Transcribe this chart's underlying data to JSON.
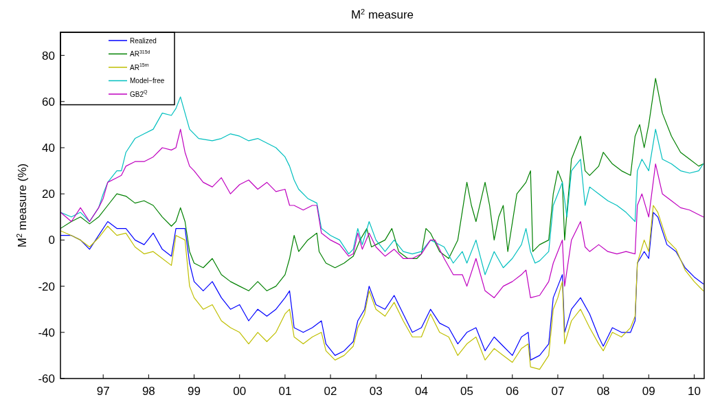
{
  "chart_data": {
    "type": "line",
    "title": "M$^{2}$ measure",
    "ylabel": "M$^{2}$ measure (%)",
    "xlim": [
      1996.06,
      2010.22
    ],
    "ylim": [
      -60,
      90
    ],
    "xticks": [
      {
        "value": 1997,
        "label": "97"
      },
      {
        "value": 1998,
        "label": "98"
      },
      {
        "value": 1999,
        "label": "99"
      },
      {
        "value": 2000,
        "label": "00"
      },
      {
        "value": 2001,
        "label": "01"
      },
      {
        "value": 2002,
        "label": "02"
      },
      {
        "value": 2003,
        "label": "03"
      },
      {
        "value": 2004,
        "label": "04"
      },
      {
        "value": 2005,
        "label": "05"
      },
      {
        "value": 2006,
        "label": "06"
      },
      {
        "value": 2007,
        "label": "07"
      },
      {
        "value": 2008,
        "label": "08"
      },
      {
        "value": 2009,
        "label": "09"
      },
      {
        "value": 2010,
        "label": "10"
      }
    ],
    "yticks": [
      -60,
      -40,
      -20,
      0,
      20,
      40,
      60,
      80
    ],
    "legend": "top left",
    "series": [
      {
        "name": "Realized",
        "color": "#0000ff",
        "x": [
          1996.06,
          1996.3,
          1996.5,
          1996.7,
          1996.9,
          1997.1,
          1997.3,
          1997.5,
          1997.7,
          1997.9,
          1998.1,
          1998.3,
          1998.5,
          1998.6,
          1998.8,
          1998.9,
          1999.0,
          1999.2,
          1999.4,
          1999.6,
          1999.8,
          2000.0,
          2000.2,
          2000.4,
          2000.6,
          2000.8,
          2001.0,
          2001.1,
          2001.2,
          2001.4,
          2001.6,
          2001.8,
          2001.9,
          2002.1,
          2002.3,
          2002.5,
          2002.6,
          2002.75,
          2002.85,
          2003.0,
          2003.2,
          2003.4,
          2003.6,
          2003.8,
          2004.0,
          2004.2,
          2004.4,
          2004.6,
          2004.8,
          2005.0,
          2005.2,
          2005.4,
          2005.6,
          2005.8,
          2006.0,
          2006.2,
          2006.35,
          2006.4,
          2006.6,
          2006.8,
          2006.9,
          2007.0,
          2007.1,
          2007.15,
          2007.3,
          2007.5,
          2007.7,
          2007.9,
          2008.0,
          2008.2,
          2008.4,
          2008.6,
          2008.7,
          2008.75,
          2008.9,
          2009.0,
          2009.1,
          2009.2,
          2009.4,
          2009.6,
          2009.8,
          2010.0,
          2010.2
        ],
        "values": [
          2,
          2,
          0,
          -4,
          2,
          8,
          5,
          5,
          0,
          -2,
          3,
          -4,
          -7,
          5,
          5,
          -10,
          -18,
          -22,
          -18,
          -25,
          -30,
          -28,
          -35,
          -30,
          -33,
          -30,
          -25,
          -22,
          -38,
          -40,
          -38,
          -35,
          -45,
          -50,
          -48,
          -44,
          -35,
          -30,
          -20,
          -28,
          -30,
          -24,
          -32,
          -40,
          -38,
          -30,
          -36,
          -38,
          -45,
          -40,
          -38,
          -48,
          -42,
          -46,
          -50,
          -42,
          -40,
          -52,
          -50,
          -45,
          -25,
          -20,
          -15,
          -40,
          -30,
          -25,
          -32,
          -42,
          -46,
          -38,
          -40,
          -40,
          -35,
          -10,
          -5,
          -8,
          12,
          10,
          -2,
          -5,
          -12,
          -16,
          -19
        ]
      },
      {
        "name": "AR$^{315d}$",
        "color": "#008000",
        "x": [
          1996.06,
          1996.3,
          1996.5,
          1996.7,
          1996.9,
          1997.1,
          1997.3,
          1997.5,
          1997.7,
          1997.9,
          1998.1,
          1998.3,
          1998.5,
          1998.6,
          1998.7,
          1998.8,
          1998.9,
          1999.0,
          1999.2,
          1999.4,
          1999.6,
          1999.8,
          2000.0,
          2000.2,
          2000.4,
          2000.6,
          2000.8,
          2001.0,
          2001.1,
          2001.2,
          2001.3,
          2001.5,
          2001.7,
          2001.75,
          2001.9,
          2002.1,
          2002.3,
          2002.5,
          2002.65,
          2002.8,
          2002.9,
          2003.0,
          2003.2,
          2003.35,
          2003.5,
          2003.7,
          2003.9,
          2004.0,
          2004.1,
          2004.2,
          2004.4,
          2004.6,
          2004.8,
          2005.0,
          2005.1,
          2005.2,
          2005.4,
          2005.5,
          2005.6,
          2005.7,
          2005.8,
          2005.9,
          2006.1,
          2006.3,
          2006.4,
          2006.45,
          2006.6,
          2006.8,
          2006.9,
          2007.0,
          2007.1,
          2007.15,
          2007.3,
          2007.4,
          2007.5,
          2007.6,
          2007.7,
          2007.9,
          2008.0,
          2008.2,
          2008.4,
          2008.6,
          2008.7,
          2008.8,
          2008.9,
          2009.0,
          2009.15,
          2009.3,
          2009.5,
          2009.7,
          2009.9,
          2010.1,
          2010.2
        ],
        "values": [
          5,
          8,
          10,
          7,
          10,
          15,
          20,
          19,
          16,
          17,
          15,
          10,
          6,
          8,
          14,
          8,
          -5,
          -10,
          -12,
          -8,
          -15,
          -18,
          -20,
          -22,
          -18,
          -22,
          -20,
          -15,
          -8,
          2,
          -5,
          0,
          3,
          -5,
          -10,
          -12,
          -10,
          -7,
          0,
          5,
          -3,
          -2,
          0,
          5,
          -5,
          -8,
          -8,
          -6,
          5,
          3,
          -5,
          -8,
          0,
          25,
          15,
          8,
          25,
          15,
          0,
          10,
          15,
          -5,
          20,
          25,
          30,
          -5,
          -2,
          0,
          20,
          30,
          25,
          0,
          35,
          40,
          45,
          30,
          28,
          32,
          38,
          33,
          30,
          28,
          45,
          50,
          40,
          50,
          70,
          55,
          45,
          38,
          35,
          32,
          33
        ]
      },
      {
        "name": "AR$^{15m}$",
        "color": "#bfbf00",
        "x": [
          1996.06,
          1996.3,
          1996.5,
          1996.7,
          1996.9,
          1997.1,
          1997.3,
          1997.5,
          1997.7,
          1997.9,
          1998.1,
          1998.3,
          1998.5,
          1998.6,
          1998.8,
          1998.9,
          1999.0,
          1999.2,
          1999.4,
          1999.6,
          1999.8,
          2000.0,
          2000.2,
          2000.4,
          2000.6,
          2000.8,
          2001.0,
          2001.1,
          2001.2,
          2001.4,
          2001.6,
          2001.8,
          2001.9,
          2002.1,
          2002.3,
          2002.5,
          2002.6,
          2002.75,
          2002.85,
          2003.0,
          2003.2,
          2003.4,
          2003.6,
          2003.8,
          2004.0,
          2004.2,
          2004.4,
          2004.6,
          2004.8,
          2005.0,
          2005.2,
          2005.4,
          2005.6,
          2005.8,
          2006.0,
          2006.2,
          2006.35,
          2006.4,
          2006.6,
          2006.8,
          2006.9,
          2007.0,
          2007.1,
          2007.15,
          2007.3,
          2007.5,
          2007.7,
          2007.9,
          2008.0,
          2008.2,
          2008.4,
          2008.6,
          2008.7,
          2008.75,
          2008.9,
          2009.0,
          2009.1,
          2009.2,
          2009.4,
          2009.6,
          2009.8,
          2010.0,
          2010.2
        ],
        "values": [
          4,
          2,
          0,
          -3,
          1,
          6,
          2,
          3,
          -3,
          -6,
          -5,
          -8,
          -11,
          2,
          0,
          -20,
          -25,
          -30,
          -28,
          -35,
          -38,
          -40,
          -45,
          -40,
          -44,
          -40,
          -32,
          -30,
          -42,
          -45,
          -42,
          -40,
          -48,
          -52,
          -50,
          -46,
          -38,
          -32,
          -22,
          -30,
          -33,
          -27,
          -35,
          -42,
          -42,
          -32,
          -40,
          -42,
          -50,
          -45,
          -42,
          -52,
          -47,
          -50,
          -53,
          -47,
          -45,
          -55,
          -56,
          -50,
          -30,
          -25,
          -18,
          -45,
          -35,
          -30,
          -38,
          -45,
          -48,
          -40,
          -42,
          -38,
          -33,
          -10,
          0,
          -5,
          15,
          12,
          0,
          -4,
          -13,
          -18,
          -22
        ]
      },
      {
        "name": "Model−free",
        "color": "#00bfbf",
        "x": [
          1996.06,
          1996.3,
          1996.5,
          1996.7,
          1996.9,
          1997.0,
          1997.1,
          1997.3,
          1997.4,
          1997.5,
          1997.7,
          1997.9,
          1998.1,
          1998.3,
          1998.5,
          1998.6,
          1998.7,
          1998.8,
          1998.9,
          1999.1,
          1999.4,
          1999.6,
          1999.8,
          2000.0,
          2000.2,
          2000.4,
          2000.6,
          2000.8,
          2001.0,
          2001.1,
          2001.2,
          2001.3,
          2001.5,
          2001.7,
          2001.8,
          2002.0,
          2002.2,
          2002.4,
          2002.5,
          2002.6,
          2002.7,
          2002.85,
          2003.0,
          2003.2,
          2003.4,
          2003.6,
          2003.8,
          2004.0,
          2004.2,
          2004.3,
          2004.5,
          2004.7,
          2004.9,
          2005.0,
          2005.2,
          2005.4,
          2005.6,
          2005.8,
          2006.0,
          2006.2,
          2006.3,
          2006.4,
          2006.5,
          2006.6,
          2006.8,
          2006.9,
          2007.0,
          2007.1,
          2007.2,
          2007.3,
          2007.5,
          2007.6,
          2007.7,
          2007.9,
          2008.1,
          2008.3,
          2008.5,
          2008.7,
          2008.75,
          2008.85,
          2009.0,
          2009.15,
          2009.3,
          2009.5,
          2009.7,
          2009.9,
          2010.1,
          2010.2
        ],
        "values": [
          12,
          10,
          12,
          8,
          14,
          20,
          25,
          30,
          30,
          38,
          44,
          46,
          48,
          55,
          54,
          57,
          62,
          55,
          48,
          44,
          43,
          44,
          46,
          45,
          43,
          44,
          42,
          40,
          36,
          32,
          26,
          22,
          18,
          16,
          5,
          2,
          0,
          -6,
          -4,
          5,
          -2,
          8,
          0,
          -5,
          0,
          -5,
          -6,
          -5,
          0,
          -1,
          -3,
          -10,
          -5,
          -10,
          0,
          -15,
          -5,
          -12,
          -8,
          -2,
          5,
          -5,
          -10,
          -9,
          -5,
          15,
          20,
          25,
          10,
          30,
          35,
          15,
          23,
          20,
          17,
          15,
          12,
          8,
          30,
          35,
          30,
          48,
          35,
          33,
          30,
          29,
          30,
          33
        ]
      },
      {
        "name": "GB2$^{Q}$",
        "color": "#bf00bf",
        "x": [
          1996.06,
          1996.3,
          1996.5,
          1996.7,
          1996.9,
          1997.0,
          1997.1,
          1997.3,
          1997.4,
          1997.5,
          1997.7,
          1997.9,
          1998.1,
          1998.3,
          1998.5,
          1998.6,
          1998.7,
          1998.8,
          1998.9,
          1999.0,
          1999.2,
          1999.4,
          1999.6,
          1999.8,
          2000.0,
          2000.2,
          2000.4,
          2000.6,
          2000.8,
          2001.0,
          2001.1,
          2001.2,
          2001.4,
          2001.6,
          2001.7,
          2001.8,
          2002.0,
          2002.2,
          2002.4,
          2002.5,
          2002.6,
          2002.7,
          2002.85,
          2003.0,
          2003.2,
          2003.4,
          2003.6,
          2003.8,
          2004.0,
          2004.2,
          2004.3,
          2004.5,
          2004.7,
          2004.9,
          2005.0,
          2005.2,
          2005.4,
          2005.6,
          2005.8,
          2006.0,
          2006.2,
          2006.3,
          2006.4,
          2006.6,
          2006.8,
          2006.9,
          2007.0,
          2007.1,
          2007.15,
          2007.3,
          2007.5,
          2007.6,
          2007.7,
          2007.9,
          2008.1,
          2008.3,
          2008.5,
          2008.7,
          2008.75,
          2008.85,
          2009.0,
          2009.15,
          2009.3,
          2009.5,
          2009.7,
          2009.9,
          2010.1,
          2010.2
        ],
        "values": [
          12,
          8,
          14,
          8,
          14,
          18,
          25,
          27,
          28,
          32,
          34,
          34,
          36,
          40,
          39,
          40,
          48,
          38,
          32,
          30,
          25,
          23,
          27,
          20,
          24,
          26,
          22,
          25,
          21,
          22,
          15,
          15,
          13,
          15,
          15,
          3,
          0,
          -2,
          -7,
          -6,
          3,
          -4,
          3,
          -3,
          -7,
          -4,
          -8,
          -8,
          -6,
          0,
          0,
          -8,
          -15,
          -15,
          -20,
          -8,
          -22,
          -25,
          -20,
          -18,
          -15,
          -13,
          -25,
          -24,
          -18,
          -10,
          -5,
          0,
          -20,
          0,
          8,
          -3,
          -5,
          -2,
          -5,
          -6,
          -5,
          -6,
          15,
          20,
          10,
          33,
          20,
          17,
          14,
          13,
          11,
          10
        ]
      }
    ]
  }
}
